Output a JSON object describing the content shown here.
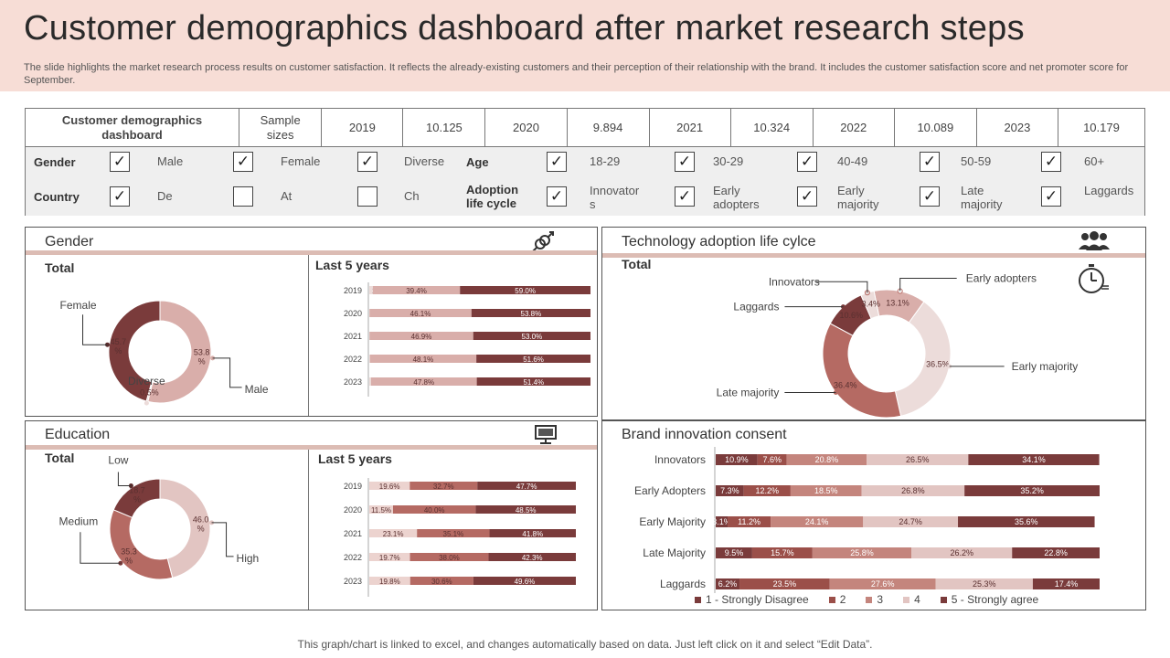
{
  "header": {
    "title": "Customer demographics dashboard after market research steps",
    "subtitle": "The slide highlights the market research process results on customer satisfaction. It reflects the already-existing customers and their perception of their relationship with the brand. It includes the customer satisfaction score and net promoter score for September."
  },
  "filters": {
    "row1": [
      "Customer demographics dashboard",
      "Sample sizes",
      "2019",
      "10.125",
      "2020",
      "9.894",
      "2021",
      "10.324",
      "2022",
      "10.089",
      "2023",
      "10.179"
    ],
    "gender_label": "Gender",
    "country_label": "Country",
    "age_label": "Age",
    "adoption_label": "Adoption life cycle",
    "gender_opts": [
      {
        "label": "Male",
        "checked": true
      },
      {
        "label": "Female",
        "checked": true
      },
      {
        "label": "Diverse",
        "checked": true
      }
    ],
    "country_opts": [
      {
        "label": "De",
        "checked": true
      },
      {
        "label": "At",
        "checked": false
      },
      {
        "label": "Ch",
        "checked": false
      }
    ],
    "age_opts": [
      {
        "label": "18-29",
        "checked": true
      },
      {
        "label": "30-29",
        "checked": true
      },
      {
        "label": "40-49",
        "checked": true
      },
      {
        "label": "50-59",
        "checked": true
      },
      {
        "label": "60+",
        "checked": true
      }
    ],
    "adoption_opts": [
      {
        "label": "Innovator s",
        "checked": true
      },
      {
        "label": "Early adopters",
        "checked": true
      },
      {
        "label": "Early majority",
        "checked": true
      },
      {
        "label": "Late majority",
        "checked": true
      },
      {
        "label": "Laggards",
        "checked": true
      }
    ]
  },
  "panels": {
    "gender": {
      "title": "Gender",
      "total": "Total",
      "last5": "Last 5 years"
    },
    "education": {
      "title": "Education",
      "total": "Total",
      "last5": "Last 5 years"
    },
    "tech": {
      "title": "Technology adoption life cylce",
      "total": "Total"
    },
    "brand": {
      "title": "Brand innovation consent"
    }
  },
  "footer": "This graph/chart is linked to excel, and changes automatically based on data. Just left click on it and select “Edit Data”.",
  "chart_data": [
    {
      "id": "gender_donut",
      "type": "pie",
      "title": "Gender",
      "labels": [
        "Male",
        "Diverse",
        "Female"
      ],
      "values": [
        53.8,
        0.5,
        45.7
      ],
      "value_labels": [
        "53.8 %",
        "0.5%",
        "45.7 %"
      ],
      "colors": [
        "#d9aeaa",
        "#ecdcda",
        "#7a3b3b"
      ]
    },
    {
      "id": "gender_bars",
      "type": "bar",
      "orientation": "horizontal",
      "stacked": true,
      "title": "Last 5 years",
      "categories": [
        "2019",
        "2020",
        "2021",
        "2022",
        "2023"
      ],
      "series": [
        {
          "values": [
            1.6,
            0.1,
            0.1,
            0.3,
            0.8
          ],
          "color": "#ecdcda"
        },
        {
          "values": [
            39.4,
            46.1,
            46.9,
            48.1,
            47.8
          ],
          "color": "#d9aeaa"
        },
        {
          "values": [
            59.0,
            53.8,
            53.0,
            51.6,
            51.4
          ],
          "color": "#7a3b3b"
        }
      ]
    },
    {
      "id": "education_donut",
      "type": "pie",
      "title": "Education",
      "labels": [
        "High",
        "Medium",
        "Low"
      ],
      "values": [
        46.0,
        35.3,
        18.7
      ],
      "value_labels": [
        "46.0 %",
        "35.3 %",
        "18.7 %"
      ],
      "colors": [
        "#e2c5c2",
        "#b56a63",
        "#7a3b3b"
      ]
    },
    {
      "id": "education_bars",
      "type": "bar",
      "orientation": "horizontal",
      "stacked": true,
      "title": "Last 5 years",
      "categories": [
        "2019",
        "2020",
        "2021",
        "2022",
        "2023"
      ],
      "series": [
        {
          "values": [
            19.6,
            11.5,
            23.1,
            19.7,
            19.8
          ],
          "color": "#ecd3cf"
        },
        {
          "values": [
            32.7,
            40.0,
            35.1,
            38.0,
            30.6
          ],
          "color": "#b56a63"
        },
        {
          "values": [
            47.7,
            48.5,
            41.8,
            42.3,
            49.6
          ],
          "color": "#7a3b3b"
        }
      ]
    },
    {
      "id": "tech_donut",
      "type": "pie",
      "title": "Technology adoption life cylce",
      "labels": [
        "Early adopters",
        "Early majority",
        "Late majority",
        "Laggards",
        "Innovators"
      ],
      "values": [
        13.1,
        36.5,
        36.4,
        10.6,
        3.4
      ],
      "value_labels": [
        "13.1%",
        "36.5%",
        "36.4%",
        "10.6%",
        "3.4%"
      ],
      "colors": [
        "#d9aeaa",
        "#ecdcda",
        "#b56a63",
        "#7a3b3b",
        "#ecdcda"
      ]
    },
    {
      "id": "brand_bars",
      "type": "bar",
      "orientation": "horizontal",
      "stacked": true,
      "title": "Brand innovation consent",
      "categories": [
        "Innovators",
        "Early Adopters",
        "Early Majority",
        "Late Majority",
        "Laggards"
      ],
      "series": [
        {
          "name": "1 - Strongly Disagree",
          "values": [
            10.9,
            7.3,
            3.1,
            9.5,
            6.2
          ],
          "color": "#7a3b3b"
        },
        {
          "name": "2",
          "values": [
            7.6,
            12.2,
            11.2,
            15.7,
            23.5
          ],
          "color": "#9b4f49"
        },
        {
          "name": "3",
          "values": [
            20.8,
            18.5,
            24.1,
            25.8,
            27.6
          ],
          "color": "#c4857d"
        },
        {
          "name": "4",
          "values": [
            26.5,
            26.8,
            24.7,
            26.2,
            25.3
          ],
          "color": "#e2c5c2"
        },
        {
          "name": "5 - Strongly agree",
          "values": [
            34.1,
            35.2,
            35.6,
            22.8,
            17.4
          ],
          "color": "#7a3b3b"
        }
      ]
    }
  ]
}
